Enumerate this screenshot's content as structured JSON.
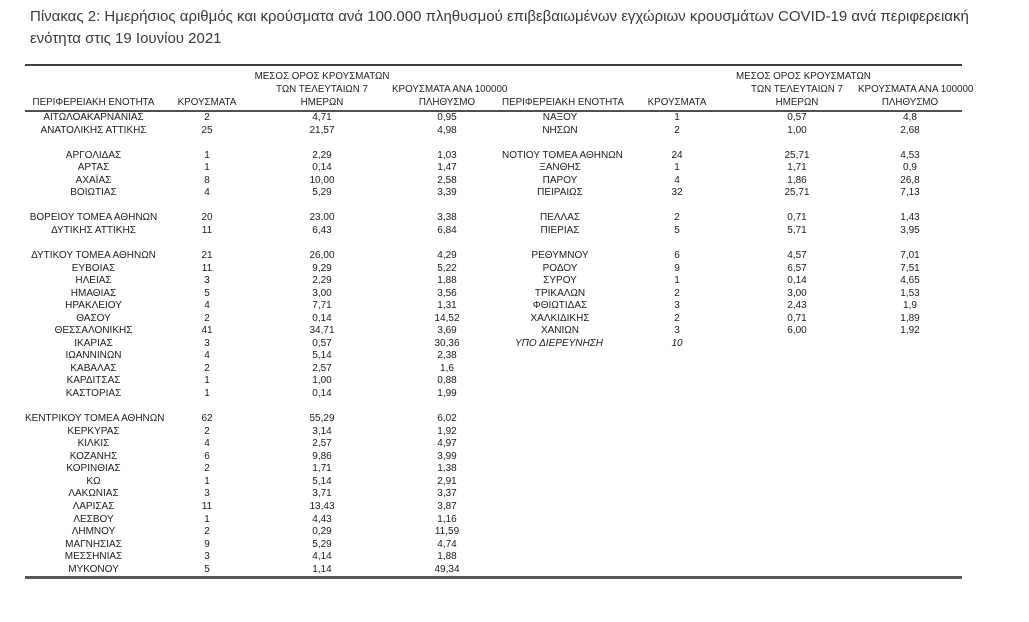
{
  "title_lines": [
    "Πίνακας 2: Ημερήσιος αριθμός και κρούσματα ανά 100.000 πληθυσμού επιβεβαιωμένων εγχώριων κρουσμάτων COVID-19 ανά περιφερειακή",
    "ενότητα στις 19 Ιουνίου 2021"
  ],
  "table": {
    "headers": {
      "region": "ΠΕΡΙΦΕΡΕΙΑΚΗ ΕΝΟΤΗΤΑ",
      "cases": "ΚΡΟΥΣΜΑΤΑ",
      "avg7_lines": [
        "ΜΕΣΟΣ ΟΡΟΣ ΚΡΟΥΣΜΑΤΩΝ",
        "ΤΩΝ ΤΕΛΕΥΤΑΙΩΝ 7",
        "ΗΜΕΡΩΝ"
      ],
      "per100k_lines": [
        "ΚΡΟΥΣΜΑΤΑ ΑΝΑ 100000",
        "ΠΛΗΘΥΣΜΟ"
      ]
    },
    "rows": [
      {
        "cells": [
          "ΑΙΤΩΛΟΑΚΑΡΝΑΝΙΑΣ",
          "2",
          "4,71",
          "0,95",
          "ΝΑΞΟΥ",
          "1",
          "0,57",
          "4,8"
        ]
      },
      {
        "cells": [
          "ΑΝΑΤΟΛΙΚΗΣ ΑΤΤΙΚΗΣ",
          "25",
          "21,57",
          "4,98",
          "ΝΗΣΩΝ",
          "2",
          "1,00",
          "2,68"
        ]
      },
      {
        "cells": [
          "",
          "",
          "",
          "",
          "",
          "",
          "",
          ""
        ]
      },
      {
        "cells": [
          "ΑΡΓΟΛΙΔΑΣ",
          "1",
          "2,29",
          "1,03",
          "ΝΟΤΙΟΥ ΤΟΜΕΑ ΑΘΗΝΩΝ",
          "24",
          "25,71",
          "4,53"
        ]
      },
      {
        "cells": [
          "ΑΡΤΑΣ",
          "1",
          "0,14",
          "1,47",
          "ΞΑΝΘΗΣ",
          "1",
          "1,71",
          "0,9"
        ]
      },
      {
        "cells": [
          "ΑΧΑΪΑΣ",
          "8",
          "10,00",
          "2,58",
          "ΠΑΡΟΥ",
          "4",
          "1,86",
          "26,8"
        ]
      },
      {
        "cells": [
          "ΒΟΙΩΤΙΑΣ",
          "4",
          "5,29",
          "3,39",
          "ΠΕΙΡΑΙΩΣ",
          "32",
          "25,71",
          "7,13"
        ]
      },
      {
        "cells": [
          "",
          "",
          "",
          "",
          "",
          "",
          "",
          ""
        ]
      },
      {
        "cells": [
          "ΒΟΡΕΙΟΥ ΤΟΜΕΑ ΑΘΗΝΩΝ",
          "20",
          "23,00",
          "3,38",
          "ΠΕΛΛΑΣ",
          "2",
          "0,71",
          "1,43"
        ]
      },
      {
        "cells": [
          "ΔΥΤΙΚΗΣ ΑΤΤΙΚΗΣ",
          "11",
          "6,43",
          "6,84",
          "ΠΙΕΡΙΑΣ",
          "5",
          "5,71",
          "3,95"
        ]
      },
      {
        "cells": [
          "",
          "",
          "",
          "",
          "",
          "",
          "",
          ""
        ]
      },
      {
        "cells": [
          "ΔΥΤΙΚΟΥ ΤΟΜΕΑ ΑΘΗΝΩΝ",
          "21",
          "26,00",
          "4,29",
          "ΡΕΘΥΜΝΟΥ",
          "6",
          "4,57",
          "7,01"
        ]
      },
      {
        "cells": [
          "ΕΥΒΟΙΑΣ",
          "11",
          "9,29",
          "5,22",
          "ΡΟΔΟΥ",
          "9",
          "6,57",
          "7,51"
        ]
      },
      {
        "cells": [
          "ΗΛΕΙΑΣ",
          "3",
          "2,29",
          "1,88",
          "ΣΥΡΟΥ",
          "1",
          "0,14",
          "4,65"
        ]
      },
      {
        "cells": [
          "ΗΜΑΘΙΑΣ",
          "5",
          "3,00",
          "3,56",
          "ΤΡΙΚΑΛΩΝ",
          "2",
          "3,00",
          "1,53"
        ]
      },
      {
        "cells": [
          "ΗΡΑΚΛΕΙΟΥ",
          "4",
          "7,71",
          "1,31",
          "ΦΘΙΩΤΙΔΑΣ",
          "3",
          "2,43",
          "1,9"
        ]
      },
      {
        "cells": [
          "ΘΑΣΟΥ",
          "2",
          "0,14",
          "14,52",
          "ΧΑΛΚΙΔΙΚΗΣ",
          "2",
          "0,71",
          "1,89"
        ]
      },
      {
        "cells": [
          "ΘΕΣΣΑΛΟΝΙΚΗΣ",
          "41",
          "34,71",
          "3,69",
          "ΧΑΝΙΩΝ",
          "3",
          "6,00",
          "1,92"
        ]
      },
      {
        "cells": [
          "ΙΚΑΡΙΑΣ",
          "3",
          "0,57",
          "30,36",
          "ΥΠΟ ΔΙΕΡΕΥΝΗΣΗ",
          "10",
          "",
          ""
        ],
        "italic_right": true
      },
      {
        "cells": [
          "ΙΩΑΝΝΙΝΩΝ",
          "4",
          "5,14",
          "2,38",
          "",
          "",
          "",
          ""
        ]
      },
      {
        "cells": [
          "ΚΑΒΑΛΑΣ",
          "2",
          "2,57",
          "1,6",
          "",
          "",
          "",
          ""
        ]
      },
      {
        "cells": [
          "ΚΑΡΔΙΤΣΑΣ",
          "1",
          "1,00",
          "0,88",
          "",
          "",
          "",
          ""
        ]
      },
      {
        "cells": [
          "ΚΑΣΤΟΡΙΑΣ",
          "1",
          "0,14",
          "1,99",
          "",
          "",
          "",
          ""
        ]
      },
      {
        "cells": [
          "",
          "",
          "",
          "",
          "",
          "",
          "",
          ""
        ]
      },
      {
        "cells": [
          "ΚΕΝΤΡΙΚΟΥ ΤΟΜΕΑ ΑΘΗΝΩΝ",
          "62",
          "55,29",
          "6,02",
          "",
          "",
          "",
          ""
        ]
      },
      {
        "cells": [
          "ΚΕΡΚΥΡΑΣ",
          "2",
          "3,14",
          "1,92",
          "",
          "",
          "",
          ""
        ]
      },
      {
        "cells": [
          "ΚΙΛΚΙΣ",
          "4",
          "2,57",
          "4,97",
          "",
          "",
          "",
          ""
        ]
      },
      {
        "cells": [
          "ΚΟΖΑΝΗΣ",
          "6",
          "9,86",
          "3,99",
          "",
          "",
          "",
          ""
        ]
      },
      {
        "cells": [
          "ΚΟΡΙΝΘΙΑΣ",
          "2",
          "1,71",
          "1,38",
          "",
          "",
          "",
          ""
        ]
      },
      {
        "cells": [
          "ΚΩ",
          "1",
          "5,14",
          "2,91",
          "",
          "",
          "",
          ""
        ]
      },
      {
        "cells": [
          "ΛΑΚΩΝΙΑΣ",
          "3",
          "3,71",
          "3,37",
          "",
          "",
          "",
          ""
        ]
      },
      {
        "cells": [
          "ΛΑΡΙΣΑΣ",
          "11",
          "13,43",
          "3,87",
          "",
          "",
          "",
          ""
        ]
      },
      {
        "cells": [
          "ΛΕΣΒΟΥ",
          "1",
          "4,43",
          "1,16",
          "",
          "",
          "",
          ""
        ]
      },
      {
        "cells": [
          "ΛΗΜΝΟΥ",
          "2",
          "0,29",
          "11,59",
          "",
          "",
          "",
          ""
        ]
      },
      {
        "cells": [
          "ΜΑΓΝΗΣΙΑΣ",
          "9",
          "5,29",
          "4,74",
          "",
          "",
          "",
          ""
        ]
      },
      {
        "cells": [
          "ΜΕΣΣΗΝΙΑΣ",
          "3",
          "4,14",
          "1,88",
          "",
          "",
          "",
          ""
        ]
      },
      {
        "cells": [
          "ΜΥΚΟΝΟΥ",
          "5",
          "1,14",
          "49,34",
          "",
          "",
          "",
          ""
        ]
      }
    ]
  }
}
